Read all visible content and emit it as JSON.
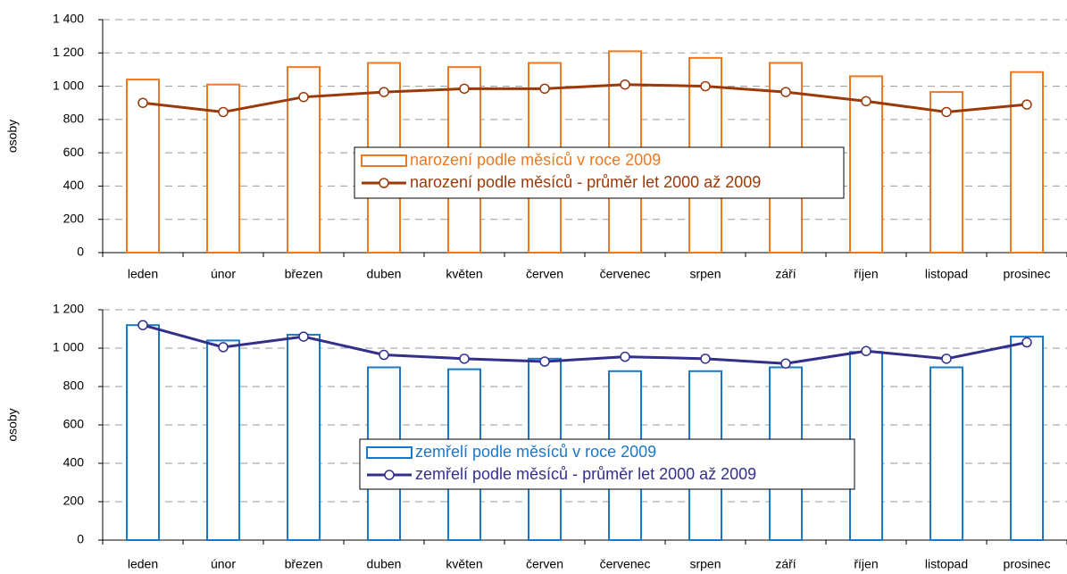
{
  "chart_data": [
    {
      "type": "combo",
      "ylabel": "osoby",
      "categories": [
        "leden",
        "únor",
        "březen",
        "duben",
        "květen",
        "červen",
        "červenec",
        "srpen",
        "září",
        "říjen",
        "listopad",
        "prosinec"
      ],
      "series": [
        {
          "name": "narození podle měsíců v roce 2009",
          "type": "bar",
          "color": "#f07820",
          "values": [
            1040,
            1010,
            1115,
            1140,
            1115,
            1140,
            1210,
            1170,
            1140,
            1060,
            965,
            1085
          ]
        },
        {
          "name": "narození podle měsíců - průměr let 2000 až 2009",
          "type": "line",
          "color": "#9a3a0a",
          "values": [
            900,
            845,
            935,
            965,
            985,
            985,
            1010,
            1000,
            965,
            910,
            845,
            890
          ]
        }
      ],
      "ylim": [
        0,
        1400
      ],
      "yticks": [
        0,
        200,
        400,
        600,
        800,
        {
          "value": 1000,
          "label": "1 000"
        },
        {
          "value": 1200,
          "label": "1 200"
        },
        {
          "value": 1400,
          "label": "1 400"
        }
      ],
      "grid": true
    },
    {
      "type": "combo",
      "ylabel": "osoby",
      "categories": [
        "leden",
        "únor",
        "březen",
        "duben",
        "květen",
        "červen",
        "červenec",
        "srpen",
        "září",
        "říjen",
        "listopad",
        "prosinec"
      ],
      "series": [
        {
          "name": "zemřelí podle měsíců v roce 2009",
          "type": "bar",
          "color": "#1a78c8",
          "values": [
            1120,
            1040,
            1070,
            900,
            890,
            945,
            880,
            880,
            900,
            980,
            900,
            1060
          ]
        },
        {
          "name": "zemřelí podle měsíců - průměr let 2000 až 2009",
          "type": "line",
          "color": "#33308c",
          "values": [
            1120,
            1005,
            1060,
            965,
            945,
            930,
            955,
            945,
            920,
            985,
            945,
            1030
          ]
        }
      ],
      "ylim": [
        0,
        1200
      ],
      "yticks": [
        0,
        200,
        400,
        600,
        800,
        {
          "value": 1000,
          "label": "1 000"
        },
        {
          "value": 1200,
          "label": "1 200"
        }
      ],
      "grid": true
    }
  ]
}
